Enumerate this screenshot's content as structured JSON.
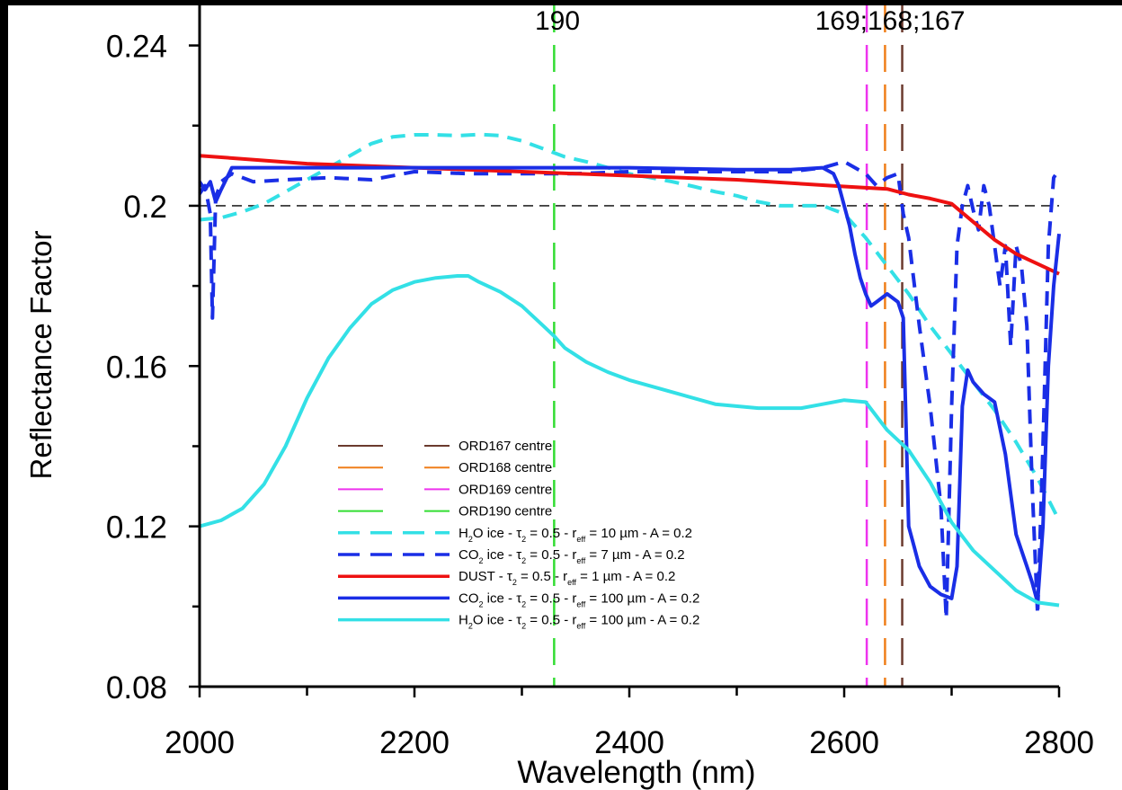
{
  "chart_data": {
    "type": "line",
    "title": "",
    "xlabel": "Wavelength (nm)",
    "ylabel": "Reflectance Factor",
    "xlim": [
      2000,
      2800
    ],
    "ylim": [
      0.08,
      0.25
    ],
    "x_ticks": [
      2000,
      2200,
      2400,
      2600,
      2800
    ],
    "x_tick_labels": [
      "2000",
      "2200",
      "2400",
      "2600",
      "2800"
    ],
    "y_ticks": [
      0.08,
      0.12,
      0.16,
      0.2,
      0.24
    ],
    "y_tick_labels": [
      "0.08",
      "0.12",
      "0.16",
      "0.2",
      "0.24"
    ],
    "x_minor_ticks": [
      2100,
      2300,
      2500,
      2700
    ],
    "y_minor_ticks": [
      0.1,
      0.14,
      0.18,
      0.22
    ],
    "grid": false,
    "reference_line": {
      "y": 0.2,
      "color": "#000000",
      "style": "dashed"
    },
    "top_annotations": [
      {
        "text": "190",
        "x": 2330
      },
      {
        "text": "169;168;167",
        "x": 2640
      }
    ],
    "vertical_markers": [
      {
        "name": "ORD167 centre",
        "x": 2654,
        "color": "#6b3a2e"
      },
      {
        "name": "ORD168 centre",
        "x": 2638,
        "color": "#f07f1a"
      },
      {
        "name": "ORD169 centre",
        "x": 2621,
        "color": "#ee33ee"
      },
      {
        "name": "ORD190 centre",
        "x": 2330,
        "color": "#33dd33"
      }
    ],
    "legend_position": "lower-center",
    "series": [
      {
        "name": "H₂O ice - τ₂ = 0.5 - r_eff = 10 µm - A = 0.2",
        "legend_parts": {
          "species": "H",
          "species_sub": "2",
          "species_rest": "O ice - τ",
          "tau_sub": "2",
          "mid": " = 0.5 - r",
          "r_sub": "eff",
          "tail": " = 10 µm - A = 0.2"
        },
        "color": "#33e0e6",
        "style": "dashed",
        "width": 4,
        "x": [
          2000,
          2020,
          2040,
          2060,
          2080,
          2100,
          2120,
          2140,
          2160,
          2180,
          2200,
          2220,
          2240,
          2260,
          2280,
          2300,
          2320,
          2340,
          2360,
          2380,
          2400,
          2420,
          2440,
          2460,
          2480,
          2500,
          2520,
          2540,
          2560,
          2580,
          2600,
          2620,
          2640,
          2660,
          2680,
          2700,
          2720,
          2740,
          2760,
          2780,
          2800
        ],
        "y": [
          0.1965,
          0.197,
          0.1985,
          0.2005,
          0.2035,
          0.2065,
          0.2095,
          0.2125,
          0.2155,
          0.2172,
          0.2177,
          0.2177,
          0.2175,
          0.2178,
          0.2175,
          0.2162,
          0.2142,
          0.2122,
          0.211,
          0.2095,
          0.208,
          0.207,
          0.206,
          0.2048,
          0.2035,
          0.2025,
          0.201,
          0.2,
          0.2,
          0.2,
          0.198,
          0.192,
          0.185,
          0.178,
          0.17,
          0.163,
          0.156,
          0.149,
          0.141,
          0.132,
          0.1215
        ]
      },
      {
        "name": "CO₂ ice - τ₂ = 0.5 - r_eff = 7 µm - A = 0.2",
        "legend_parts": {
          "species": "CO",
          "species_sub": "2",
          "species_rest": " ice - τ",
          "tau_sub": "2",
          "mid": " = 0.5 - r",
          "r_sub": "eff",
          "tail": " = 7 µm - A = 0.2"
        },
        "color": "#1a2ee6",
        "style": "dashed",
        "width": 4,
        "x": [
          2000,
          2005,
          2010,
          2012,
          2015,
          2020,
          2030,
          2050,
          2080,
          2120,
          2160,
          2200,
          2250,
          2300,
          2350,
          2400,
          2450,
          2500,
          2550,
          2580,
          2600,
          2620,
          2630,
          2640,
          2650,
          2655,
          2660,
          2670,
          2680,
          2690,
          2695,
          2700,
          2705,
          2710,
          2715,
          2720,
          2725,
          2730,
          2735,
          2740,
          2745,
          2750,
          2755,
          2760,
          2765,
          2770,
          2775,
          2780,
          2785,
          2790,
          2795,
          2800
        ],
        "y": [
          0.203,
          0.205,
          0.198,
          0.172,
          0.202,
          0.206,
          0.208,
          0.206,
          0.2065,
          0.207,
          0.2065,
          0.2085,
          0.208,
          0.208,
          0.208,
          0.2085,
          0.2085,
          0.2085,
          0.2085,
          0.2095,
          0.211,
          0.208,
          0.205,
          0.207,
          0.208,
          0.198,
          0.192,
          0.17,
          0.15,
          0.125,
          0.097,
          0.15,
          0.19,
          0.2,
          0.205,
          0.199,
          0.194,
          0.205,
          0.2,
          0.19,
          0.18,
          0.19,
          0.165,
          0.19,
          0.185,
          0.17,
          0.13,
          0.098,
          0.14,
          0.19,
          0.207,
          0.209
        ]
      },
      {
        "name": "DUST - τ₂ = 0.5 - r_eff = 1 µm - A = 0.2",
        "legend_parts": {
          "species": "DUST - τ",
          "species_sub": "",
          "species_rest": "",
          "tau_sub": "2",
          "mid": " = 0.5 - r",
          "r_sub": "eff",
          "tail": " = 1 µm - A = 0.2"
        },
        "color": "#ee1111",
        "style": "solid",
        "width": 4,
        "x": [
          2000,
          2100,
          2200,
          2300,
          2400,
          2500,
          2600,
          2640,
          2660,
          2680,
          2700,
          2720,
          2740,
          2760,
          2780,
          2800
        ],
        "y": [
          0.2125,
          0.2105,
          0.2095,
          0.2085,
          0.2075,
          0.2065,
          0.2048,
          0.2042,
          0.2028,
          0.2018,
          0.2005,
          0.196,
          0.1915,
          0.188,
          0.1855,
          0.183
        ]
      },
      {
        "name": "CO₂ ice - τ₂ = 0.5 - r_eff = 100 µm - A = 0.2",
        "legend_parts": {
          "species": "CO",
          "species_sub": "2",
          "species_rest": " ice - τ",
          "tau_sub": "2",
          "mid": " = 0.5 - r",
          "r_sub": "eff",
          "tail": " = 100 µm - A = 0.2"
        },
        "color": "#1a2ee6",
        "style": "solid",
        "width": 4,
        "x": [
          2000,
          2005,
          2010,
          2015,
          2020,
          2030,
          2050,
          2100,
          2150,
          2200,
          2300,
          2400,
          2500,
          2550,
          2580,
          2590,
          2595,
          2600,
          2605,
          2610,
          2615,
          2620,
          2625,
          2630,
          2640,
          2650,
          2655,
          2660,
          2665,
          2670,
          2680,
          2690,
          2700,
          2705,
          2710,
          2715,
          2720,
          2730,
          2740,
          2750,
          2760,
          2770,
          2775,
          2780,
          2785,
          2790,
          2795,
          2800
        ],
        "y": [
          0.206,
          0.204,
          0.206,
          0.201,
          0.204,
          0.2095,
          0.2095,
          0.2095,
          0.2095,
          0.2095,
          0.2095,
          0.2095,
          0.209,
          0.209,
          0.2095,
          0.208,
          0.205,
          0.2,
          0.195,
          0.188,
          0.182,
          0.178,
          0.175,
          0.176,
          0.178,
          0.176,
          0.172,
          0.12,
          0.115,
          0.11,
          0.105,
          0.103,
          0.102,
          0.11,
          0.15,
          0.159,
          0.156,
          0.153,
          0.151,
          0.138,
          0.118,
          0.11,
          0.106,
          0.101,
          0.12,
          0.16,
          0.18,
          0.193
        ]
      },
      {
        "name": "H₂O ice - τ₂ = 0.5 - r_eff = 100 µm - A = 0.2",
        "legend_parts": {
          "species": "H",
          "species_sub": "2",
          "species_rest": "O ice - τ",
          "tau_sub": "2",
          "mid": " = 0.5 - r",
          "r_sub": "eff",
          "tail": " = 100 µm - A = 0.2"
        },
        "color": "#33e0e6",
        "style": "solid",
        "width": 4,
        "x": [
          2000,
          2020,
          2040,
          2060,
          2080,
          2100,
          2120,
          2140,
          2160,
          2180,
          2200,
          2220,
          2240,
          2250,
          2260,
          2280,
          2300,
          2320,
          2330,
          2340,
          2360,
          2380,
          2400,
          2440,
          2480,
          2520,
          2560,
          2580,
          2600,
          2620,
          2640,
          2660,
          2680,
          2700,
          2720,
          2740,
          2760,
          2780,
          2800
        ],
        "y": [
          0.12,
          0.1215,
          0.1245,
          0.1305,
          0.14,
          0.152,
          0.162,
          0.1695,
          0.1755,
          0.179,
          0.181,
          0.182,
          0.1825,
          0.1825,
          0.181,
          0.1785,
          0.175,
          0.17,
          0.1675,
          0.1645,
          0.161,
          0.1585,
          0.1565,
          0.1535,
          0.1505,
          0.1495,
          0.1495,
          0.1505,
          0.1515,
          0.151,
          0.144,
          0.139,
          0.131,
          0.121,
          0.114,
          0.109,
          0.104,
          0.101,
          0.1003
        ]
      }
    ]
  }
}
